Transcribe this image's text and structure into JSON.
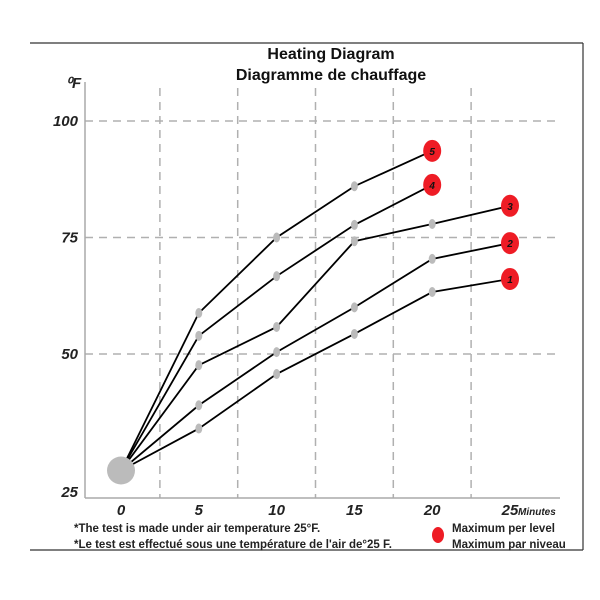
{
  "chart_data": {
    "type": "line",
    "title": "Heating Diagram",
    "subtitle": "Diagramme de chauffage",
    "ylabel": "⁰F",
    "xlabel": "Minutes",
    "xlim": [
      0,
      25
    ],
    "ylim": [
      25,
      100
    ],
    "x_ticks": [
      "0",
      "5",
      "10",
      "15",
      "20",
      "25"
    ],
    "y_ticks": [
      "25",
      "50",
      "75",
      "100"
    ],
    "grid": true,
    "origin": {
      "x": 0,
      "y": 25
    },
    "series": [
      {
        "name": "1",
        "x": [
          0,
          5,
          10,
          15,
          20,
          25
        ],
        "y": [
          25,
          34,
          45.7,
          54.3,
          63.3,
          66.1
        ]
      },
      {
        "name": "2",
        "x": [
          0,
          5,
          10,
          15,
          20,
          25
        ],
        "y": [
          25,
          39,
          50.4,
          60,
          70.4,
          73.8
        ]
      },
      {
        "name": "3",
        "x": [
          0,
          5,
          10,
          15,
          20,
          25
        ],
        "y": [
          25,
          47.6,
          55.8,
          74.2,
          77.9,
          81.8
        ]
      },
      {
        "name": "4",
        "x": [
          0,
          5,
          10,
          15,
          20
        ],
        "y": [
          25,
          53.9,
          66.7,
          77.7,
          86.3
        ]
      },
      {
        "name": "5",
        "x": [
          0,
          5,
          10,
          15,
          20
        ],
        "y": [
          25,
          58.8,
          75,
          86,
          93.6
        ]
      }
    ],
    "colors": {
      "line": "#000000",
      "point": "#bbbbbb",
      "max_marker": "#ee1c25",
      "grid": "#b0b0b0"
    },
    "notes": [
      "*The test is made under air temperature 25°F.",
      "*Le test est effectué sous une température de l'air de°25  F."
    ],
    "legend": {
      "placement": "bottom-right",
      "entries": [
        "Maximum per level",
        "Maximum par niveau"
      ]
    }
  }
}
